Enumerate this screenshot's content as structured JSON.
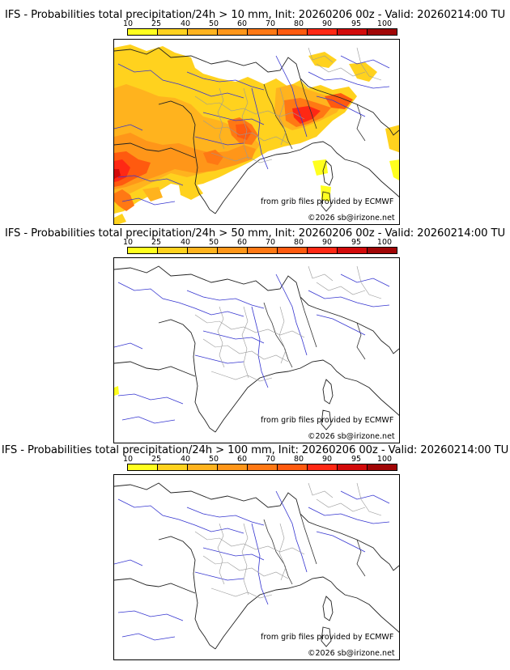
{
  "colorbar": {
    "ticks": [
      "10",
      "25",
      "40",
      "50",
      "60",
      "70",
      "80",
      "90",
      "95",
      "100"
    ],
    "colors": [
      "#ffff1e",
      "#ffd21e",
      "#ffb31e",
      "#ff9619",
      "#ff7814",
      "#ff5a0f",
      "#ff2814",
      "#d20a0a",
      "#a00505",
      "#6e0000"
    ]
  },
  "panels": [
    {
      "title": "IFS - Probabilities total precipitation/24h > 10 mm, Init: 20260206 00z - Valid: 20260214:00 TU",
      "credit_source": "from grib files provided by ECMWF",
      "credit_copyright": "©2026 sb@irizone.net"
    },
    {
      "title": "IFS - Probabilities total precipitation/24h > 50 mm, Init: 20260206 00z - Valid: 20260214:00 TU",
      "credit_source": "from grib files provided by ECMWF",
      "credit_copyright": "©2026 sb@irizone.net"
    },
    {
      "title": "IFS - Probabilities total precipitation/24h > 100 mm, Init: 20260206 00z - Valid: 20260214:00 TU",
      "credit_source": "from grib files provided by ECMWF",
      "credit_copyright": "©2026 sb@irizone.net"
    }
  ]
}
